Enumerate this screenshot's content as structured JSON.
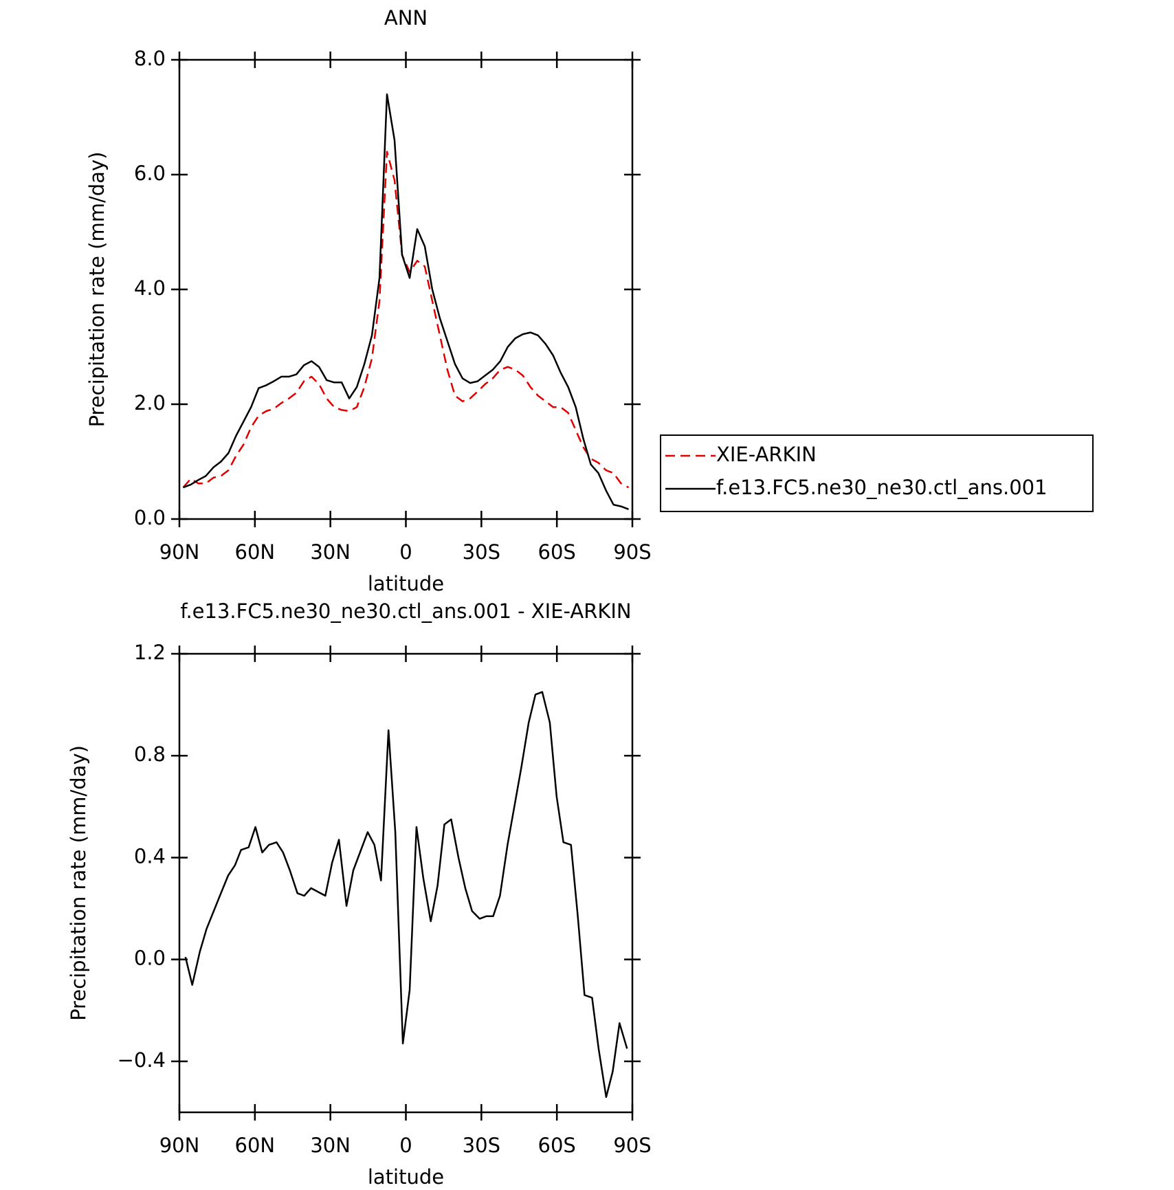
{
  "chart_data": [
    {
      "type": "line",
      "title": "ANN",
      "xlabel": "latitude",
      "ylabel": "Precipitation rate (mm/day)",
      "x": [
        88.5,
        85.5,
        82.5,
        79.5,
        76.5,
        73.5,
        70.5,
        67.5,
        64.5,
        61.5,
        58.5,
        55.5,
        52.5,
        49.5,
        46.5,
        43.5,
        40.5,
        37.5,
        34.5,
        31.5,
        28.5,
        25.5,
        22.5,
        19.5,
        16.5,
        13.5,
        10.5,
        7.5,
        4.5,
        1.5,
        -1.5,
        -4.5,
        -7.5,
        -10.5,
        -13.5,
        -16.5,
        -19.5,
        -22.5,
        -25.5,
        -28.5,
        -31.5,
        -34.5,
        -37.5,
        -40.5,
        -43.5,
        -46.5,
        -49.5,
        -52.5,
        -55.5,
        -58.5,
        -61.5,
        -64.5,
        -67.5,
        -70.5,
        -73.5,
        -76.5,
        -79.5,
        -82.5,
        -85.5,
        -88.5
      ],
      "series": [
        {
          "name": "XIE-ARKIN",
          "color": "#e00000",
          "dashed": true,
          "values": [
            0.55,
            0.7,
            0.62,
            0.62,
            0.72,
            0.75,
            0.85,
            1.1,
            1.3,
            1.6,
            1.8,
            1.88,
            1.92,
            2.02,
            2.1,
            2.2,
            2.4,
            2.48,
            2.35,
            2.1,
            1.95,
            1.9,
            1.88,
            1.95,
            2.3,
            2.8,
            3.8,
            6.4,
            5.9,
            4.6,
            4.3,
            4.5,
            4.4,
            3.8,
            3.2,
            2.6,
            2.15,
            2.05,
            2.1,
            2.22,
            2.35,
            2.45,
            2.6,
            2.65,
            2.6,
            2.5,
            2.3,
            2.15,
            2.05,
            1.95,
            1.95,
            1.85,
            1.55,
            1.25,
            1.05,
            0.98,
            0.85,
            0.8,
            0.62,
            0.55
          ]
        },
        {
          "name": "f.e13.FC5.ne30_ne30.ctl_ans.001",
          "color": "#000000",
          "dashed": false,
          "values": [
            0.55,
            0.6,
            0.68,
            0.75,
            0.9,
            1.0,
            1.15,
            1.45,
            1.7,
            1.95,
            2.28,
            2.33,
            2.4,
            2.48,
            2.48,
            2.52,
            2.68,
            2.75,
            2.65,
            2.42,
            2.38,
            2.38,
            2.1,
            2.3,
            2.7,
            3.2,
            4.2,
            7.4,
            6.6,
            4.6,
            4.2,
            5.05,
            4.75,
            4.0,
            3.5,
            3.1,
            2.7,
            2.45,
            2.37,
            2.4,
            2.5,
            2.6,
            2.75,
            3.0,
            3.15,
            3.22,
            3.25,
            3.2,
            3.05,
            2.85,
            2.55,
            2.3,
            1.95,
            1.4,
            0.95,
            0.8,
            0.5,
            0.25,
            0.22,
            0.17
          ]
        }
      ],
      "xlim": [
        90,
        -90
      ],
      "xticks": [
        {
          "value": 90,
          "label": "90N"
        },
        {
          "value": 60,
          "label": "60N"
        },
        {
          "value": 30,
          "label": "30N"
        },
        0,
        {
          "value": -30,
          "label": "30S"
        },
        {
          "value": -60,
          "label": "60S"
        },
        {
          "value": -90,
          "label": "90S"
        }
      ],
      "ylim": [
        0,
        8
      ],
      "yticks": [
        {
          "value": 0,
          "label": "0.0"
        },
        {
          "value": 2,
          "label": "2.0"
        },
        {
          "value": 4,
          "label": "4.0"
        },
        {
          "value": 6,
          "label": "6.0"
        },
        {
          "value": 8,
          "label": "8.0"
        }
      ],
      "legend": "right",
      "grid": false
    },
    {
      "type": "line",
      "title": "f.e13.FC5.ne30_ne30.ctl_ans.001 - XIE-ARKIN",
      "xlabel": "latitude",
      "ylabel": "Precipitation rate (mm/day)",
      "x": [
        87.6,
        84.9,
        81.9,
        79.2,
        73.9,
        70.6,
        67.9,
        65.5,
        62.5,
        59.8,
        57.1,
        54.4,
        51.4,
        48.8,
        46.1,
        43.1,
        40.4,
        37.7,
        32.0,
        29.3,
        26.6,
        23.6,
        20.9,
        15.2,
        12.5,
        9.9,
        6.9,
        4.2,
        1.2,
        -1.5,
        -4.2,
        -6.9,
        -9.9,
        -12.6,
        -15.3,
        -18.0,
        -20.9,
        -23.6,
        -26.3,
        -29.3,
        -32.0,
        -34.7,
        -37.4,
        -40.4,
        -43.1,
        -45.8,
        -48.8,
        -51.5,
        -54.2,
        -57.2,
        -59.9,
        -62.6,
        -65.6,
        -68.3,
        -71.0,
        -74.0,
        -76.6,
        -79.6,
        -82.2,
        -84.9,
        -87.9
      ],
      "values": [
        0.01,
        -0.1,
        0.03,
        0.12,
        0.25,
        0.33,
        0.37,
        0.43,
        0.44,
        0.52,
        0.42,
        0.45,
        0.46,
        0.42,
        0.35,
        0.26,
        0.25,
        0.28,
        0.25,
        0.38,
        0.47,
        0.21,
        0.35,
        0.5,
        0.45,
        0.31,
        0.9,
        0.5,
        -0.33,
        -0.12,
        0.52,
        0.32,
        0.15,
        0.29,
        0.53,
        0.55,
        0.4,
        0.28,
        0.19,
        0.16,
        0.17,
        0.17,
        0.25,
        0.45,
        0.6,
        0.75,
        0.93,
        1.04,
        1.05,
        0.93,
        0.64,
        0.46,
        0.45,
        0.17,
        -0.14,
        -0.15,
        -0.35,
        -0.54,
        -0.44,
        -0.25,
        -0.35
      ],
      "color": "#000000",
      "xlim": [
        90,
        -90
      ],
      "xticks": [
        {
          "value": 90,
          "label": "90N"
        },
        {
          "value": 60,
          "label": "60N"
        },
        {
          "value": 30,
          "label": "30N"
        },
        0,
        {
          "value": -30,
          "label": "30S"
        },
        {
          "value": -60,
          "label": "60S"
        },
        {
          "value": -90,
          "label": "90S"
        }
      ],
      "ylim": [
        -0.6,
        1.2
      ],
      "yticks": [
        {
          "value": -0.4,
          "label": "−0.4"
        },
        {
          "value": 0,
          "label": "0.0"
        },
        0.4,
        0.8,
        1.2
      ],
      "grid": false
    }
  ]
}
